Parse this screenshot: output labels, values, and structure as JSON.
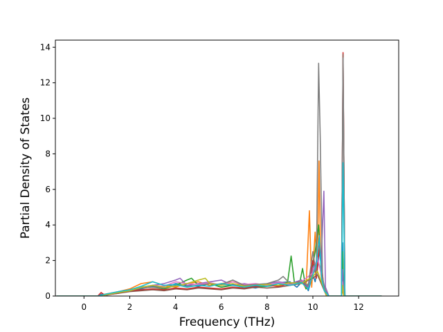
{
  "chart_data": {
    "type": "line",
    "title": "",
    "xlabel": "Frequency (THz)",
    "ylabel": "Partial Density of States",
    "xlim": [
      -1.25,
      13.75
    ],
    "ylim": [
      0,
      14.4
    ],
    "xticks": [
      0,
      2,
      4,
      6,
      8,
      10,
      12
    ],
    "yticks": [
      0,
      2,
      4,
      6,
      8,
      10,
      12,
      14
    ],
    "grid": false,
    "legend": "none",
    "series": [
      {
        "color": "#1f77b4",
        "points": [
          [
            -1.2,
            0
          ],
          [
            0.6,
            0
          ],
          [
            0.8,
            0.12
          ],
          [
            1.0,
            0.05
          ],
          [
            1.5,
            0.2
          ],
          [
            2,
            0.35
          ],
          [
            2.5,
            0.4
          ],
          [
            3,
            0.55
          ],
          [
            3.5,
            0.45
          ],
          [
            4,
            0.7
          ],
          [
            4.5,
            0.6
          ],
          [
            5,
            0.55
          ],
          [
            5.5,
            0.7
          ],
          [
            6,
            0.5
          ],
          [
            6.5,
            0.65
          ],
          [
            7,
            0.55
          ],
          [
            7.5,
            0.45
          ],
          [
            8,
            0.6
          ],
          [
            8.5,
            0.75
          ],
          [
            9,
            0.8
          ],
          [
            9.3,
            0.5
          ],
          [
            9.6,
            0.9
          ],
          [
            9.8,
            0.3
          ],
          [
            10.0,
            1.2
          ],
          [
            10.1,
            0.8
          ],
          [
            10.2,
            1.5
          ],
          [
            10.3,
            2.6
          ],
          [
            10.4,
            1.0
          ],
          [
            10.5,
            0.3
          ],
          [
            10.7,
            0
          ],
          [
            11.25,
            0
          ],
          [
            11.3,
            3.0
          ],
          [
            11.35,
            0
          ],
          [
            13,
            0
          ]
        ]
      },
      {
        "color": "#ff7f0e",
        "points": [
          [
            -1.2,
            0
          ],
          [
            0.6,
            0
          ],
          [
            0.9,
            0.1
          ],
          [
            1.5,
            0.25
          ],
          [
            2,
            0.4
          ],
          [
            2.5,
            0.7
          ],
          [
            3,
            0.8
          ],
          [
            3.5,
            0.6
          ],
          [
            4,
            0.5
          ],
          [
            4.5,
            0.7
          ],
          [
            5,
            0.8
          ],
          [
            5.5,
            0.6
          ],
          [
            6,
            0.7
          ],
          [
            6.5,
            0.8
          ],
          [
            7,
            0.6
          ],
          [
            7.5,
            0.5
          ],
          [
            8,
            0.65
          ],
          [
            8.5,
            0.7
          ],
          [
            9,
            0.6
          ],
          [
            9.5,
            0.9
          ],
          [
            9.7,
            0.4
          ],
          [
            9.85,
            4.8
          ],
          [
            9.95,
            0.5
          ],
          [
            10.1,
            3.6
          ],
          [
            10.2,
            1.5
          ],
          [
            10.27,
            7.6
          ],
          [
            10.35,
            1.2
          ],
          [
            10.45,
            0.5
          ],
          [
            10.6,
            0
          ],
          [
            11.25,
            0
          ],
          [
            11.3,
            0.35
          ],
          [
            11.35,
            0
          ],
          [
            13,
            0
          ]
        ]
      },
      {
        "color": "#2ca02c",
        "points": [
          [
            -1.2,
            0
          ],
          [
            0.6,
            0
          ],
          [
            1.0,
            0.1
          ],
          [
            1.5,
            0.2
          ],
          [
            2,
            0.3
          ],
          [
            2.5,
            0.45
          ],
          [
            3,
            0.5
          ],
          [
            3.5,
            0.4
          ],
          [
            4,
            0.6
          ],
          [
            4.5,
            0.9
          ],
          [
            4.7,
            1.0
          ],
          [
            5,
            0.6
          ],
          [
            5.5,
            0.7
          ],
          [
            6,
            0.5
          ],
          [
            6.5,
            0.6
          ],
          [
            7,
            0.55
          ],
          [
            7.5,
            0.5
          ],
          [
            8,
            0.55
          ],
          [
            8.5,
            0.6
          ],
          [
            8.9,
            0.8
          ],
          [
            9.05,
            2.25
          ],
          [
            9.2,
            0.7
          ],
          [
            9.45,
            0.9
          ],
          [
            9.55,
            1.55
          ],
          [
            9.7,
            0.4
          ],
          [
            9.9,
            1.0
          ],
          [
            10.1,
            2.5
          ],
          [
            10.25,
            4.0
          ],
          [
            10.35,
            1.8
          ],
          [
            10.5,
            0.4
          ],
          [
            10.7,
            0
          ],
          [
            11.25,
            0
          ],
          [
            11.3,
            2.5
          ],
          [
            11.35,
            0
          ],
          [
            13,
            0
          ]
        ]
      },
      {
        "color": "#d62728",
        "points": [
          [
            -1.2,
            0
          ],
          [
            0.6,
            0
          ],
          [
            0.75,
            0.2
          ],
          [
            0.9,
            0.05
          ],
          [
            1.5,
            0.15
          ],
          [
            2,
            0.3
          ],
          [
            2.5,
            0.35
          ],
          [
            3,
            0.4
          ],
          [
            3.5,
            0.35
          ],
          [
            4,
            0.45
          ],
          [
            4.5,
            0.4
          ],
          [
            5,
            0.5
          ],
          [
            5.5,
            0.45
          ],
          [
            6,
            0.4
          ],
          [
            6.5,
            0.5
          ],
          [
            7,
            0.45
          ],
          [
            7.5,
            0.55
          ],
          [
            8,
            0.6
          ],
          [
            8.5,
            0.55
          ],
          [
            9,
            0.7
          ],
          [
            9.5,
            0.8
          ],
          [
            9.8,
            0.5
          ],
          [
            10.0,
            2.0
          ],
          [
            10.15,
            1.0
          ],
          [
            10.3,
            3.0
          ],
          [
            10.45,
            0.8
          ],
          [
            10.6,
            0
          ],
          [
            11.25,
            0
          ],
          [
            11.32,
            13.7
          ],
          [
            11.4,
            0
          ],
          [
            13,
            0
          ]
        ]
      },
      {
        "color": "#9467bd",
        "points": [
          [
            -1.2,
            0
          ],
          [
            0.6,
            0
          ],
          [
            1.0,
            0.1
          ],
          [
            1.5,
            0.2
          ],
          [
            2,
            0.35
          ],
          [
            2.5,
            0.5
          ],
          [
            3,
            0.6
          ],
          [
            3.5,
            0.7
          ],
          [
            4,
            0.9
          ],
          [
            4.2,
            1.0
          ],
          [
            4.5,
            0.6
          ],
          [
            5,
            0.7
          ],
          [
            5.5,
            0.8
          ],
          [
            6,
            0.9
          ],
          [
            6.5,
            0.6
          ],
          [
            7,
            0.7
          ],
          [
            7.5,
            0.6
          ],
          [
            8,
            0.7
          ],
          [
            8.5,
            0.8
          ],
          [
            9,
            0.7
          ],
          [
            9.5,
            0.9
          ],
          [
            9.8,
            0.5
          ],
          [
            10.0,
            1.6
          ],
          [
            10.2,
            2.0
          ],
          [
            10.35,
            1.5
          ],
          [
            10.48,
            5.9
          ],
          [
            10.55,
            0.5
          ],
          [
            10.7,
            0
          ],
          [
            11.25,
            0
          ],
          [
            11.3,
            1.5
          ],
          [
            11.35,
            0
          ],
          [
            13,
            0
          ]
        ]
      },
      {
        "color": "#8c564b",
        "points": [
          [
            -1.2,
            0
          ],
          [
            0.6,
            0
          ],
          [
            1.0,
            0.08
          ],
          [
            1.5,
            0.15
          ],
          [
            2,
            0.25
          ],
          [
            2.5,
            0.3
          ],
          [
            3,
            0.35
          ],
          [
            3.5,
            0.3
          ],
          [
            4,
            0.4
          ],
          [
            4.5,
            0.35
          ],
          [
            5,
            0.45
          ],
          [
            5.5,
            0.4
          ],
          [
            6,
            0.35
          ],
          [
            6.5,
            0.45
          ],
          [
            7,
            0.4
          ],
          [
            7.5,
            0.5
          ],
          [
            8,
            0.45
          ],
          [
            8.5,
            0.5
          ],
          [
            9,
            0.6
          ],
          [
            9.5,
            0.7
          ],
          [
            10.0,
            1.0
          ],
          [
            10.2,
            1.2
          ],
          [
            10.4,
            0.6
          ],
          [
            10.6,
            0
          ],
          [
            11.25,
            0
          ],
          [
            11.32,
            13.6
          ],
          [
            11.4,
            0
          ],
          [
            13,
            0
          ]
        ]
      },
      {
        "color": "#e377c2",
        "points": [
          [
            -1.2,
            0
          ],
          [
            0.6,
            0
          ],
          [
            1.0,
            0.1
          ],
          [
            1.5,
            0.25
          ],
          [
            2,
            0.35
          ],
          [
            2.5,
            0.5
          ],
          [
            3,
            0.6
          ],
          [
            3.5,
            0.55
          ],
          [
            4,
            0.8
          ],
          [
            4.5,
            0.7
          ],
          [
            5,
            0.65
          ],
          [
            5.5,
            0.75
          ],
          [
            6,
            0.6
          ],
          [
            6.5,
            0.8
          ],
          [
            7,
            0.65
          ],
          [
            7.5,
            0.7
          ],
          [
            8,
            0.6
          ],
          [
            8.5,
            0.75
          ],
          [
            9,
            0.65
          ],
          [
            9.5,
            0.8
          ],
          [
            10.0,
            1.3
          ],
          [
            10.2,
            2.2
          ],
          [
            10.4,
            1.0
          ],
          [
            10.6,
            0
          ],
          [
            11.25,
            0
          ],
          [
            11.3,
            0.8
          ],
          [
            11.35,
            0
          ],
          [
            13,
            0
          ]
        ]
      },
      {
        "color": "#7f7f7f",
        "points": [
          [
            -1.2,
            0
          ],
          [
            0.6,
            0
          ],
          [
            1.0,
            0.1
          ],
          [
            1.5,
            0.2
          ],
          [
            2,
            0.3
          ],
          [
            2.5,
            0.45
          ],
          [
            3,
            0.5
          ],
          [
            3.5,
            0.45
          ],
          [
            4,
            0.6
          ],
          [
            4.5,
            0.55
          ],
          [
            5,
            0.6
          ],
          [
            5.5,
            0.7
          ],
          [
            6,
            0.65
          ],
          [
            6.5,
            0.9
          ],
          [
            7,
            0.6
          ],
          [
            7.5,
            0.65
          ],
          [
            8,
            0.7
          ],
          [
            8.5,
            0.9
          ],
          [
            8.7,
            1.1
          ],
          [
            9,
            0.7
          ],
          [
            9.5,
            0.8
          ],
          [
            9.8,
            0.6
          ],
          [
            10.0,
            2.5
          ],
          [
            10.15,
            1.2
          ],
          [
            10.25,
            13.1
          ],
          [
            10.32,
            9.0
          ],
          [
            10.42,
            1.0
          ],
          [
            10.55,
            0.3
          ],
          [
            10.7,
            0
          ],
          [
            11.25,
            0
          ],
          [
            11.32,
            13.4
          ],
          [
            11.4,
            0
          ],
          [
            13,
            0
          ]
        ]
      },
      {
        "color": "#bcbd22",
        "points": [
          [
            -1.2,
            0
          ],
          [
            0.6,
            0
          ],
          [
            1.0,
            0.08
          ],
          [
            1.5,
            0.2
          ],
          [
            2,
            0.3
          ],
          [
            2.5,
            0.5
          ],
          [
            3,
            0.6
          ],
          [
            3.5,
            0.5
          ],
          [
            4,
            0.55
          ],
          [
            4.5,
            0.7
          ],
          [
            5,
            0.9
          ],
          [
            5.3,
            1.0
          ],
          [
            5.5,
            0.7
          ],
          [
            6,
            0.6
          ],
          [
            6.5,
            0.7
          ],
          [
            7,
            0.55
          ],
          [
            7.5,
            0.6
          ],
          [
            8,
            0.65
          ],
          [
            8.5,
            0.6
          ],
          [
            9,
            0.75
          ],
          [
            9.5,
            0.7
          ],
          [
            10.0,
            1.1
          ],
          [
            10.2,
            1.4
          ],
          [
            10.4,
            0.7
          ],
          [
            10.6,
            0
          ],
          [
            11.25,
            0
          ],
          [
            11.3,
            0.6
          ],
          [
            11.35,
            0
          ],
          [
            13,
            0
          ]
        ]
      },
      {
        "color": "#17becf",
        "points": [
          [
            -1.2,
            0
          ],
          [
            0.6,
            0
          ],
          [
            1.0,
            0.12
          ],
          [
            1.5,
            0.25
          ],
          [
            2,
            0.35
          ],
          [
            2.5,
            0.55
          ],
          [
            3,
            0.8
          ],
          [
            3.5,
            0.6
          ],
          [
            4,
            0.65
          ],
          [
            4.5,
            0.5
          ],
          [
            5,
            0.6
          ],
          [
            5.5,
            0.55
          ],
          [
            6,
            0.7
          ],
          [
            6.5,
            0.6
          ],
          [
            7,
            0.5
          ],
          [
            7.5,
            0.6
          ],
          [
            8,
            0.55
          ],
          [
            8.5,
            0.7
          ],
          [
            9,
            0.6
          ],
          [
            9.5,
            0.75
          ],
          [
            9.8,
            0.4
          ],
          [
            10.0,
            1.2
          ],
          [
            10.15,
            1.8
          ],
          [
            10.28,
            3.4
          ],
          [
            10.38,
            1.0
          ],
          [
            10.5,
            0.3
          ],
          [
            10.7,
            0
          ],
          [
            11.25,
            0
          ],
          [
            11.32,
            7.5
          ],
          [
            11.4,
            0
          ],
          [
            13,
            0
          ]
        ]
      }
    ]
  }
}
